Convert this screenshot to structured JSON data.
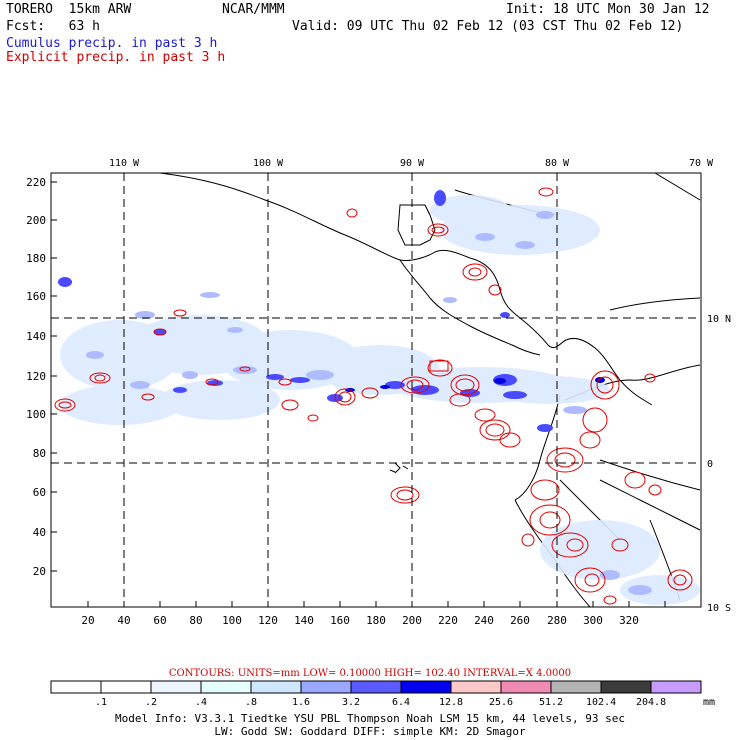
{
  "header": {
    "model_name": "TORERO  15km ARW",
    "center": "NCAR/MMM",
    "init": "Init: 18 UTC Mon 30 Jan 12",
    "fcst": "Fcst:   63 h",
    "valid": "Valid: 09 UTC Thu 02 Feb 12 (03 CST Thu 02 Feb 12)",
    "cumulus_label": "Cumulus precip. in past 3 h",
    "explicit_label": "Explicit precip. in past 3 h"
  },
  "map": {
    "lon_labels": [
      "110 W",
      "100 W",
      "90 W",
      "80 W",
      "70 W"
    ],
    "lat_labels": [
      "10 N",
      "0",
      "10 S"
    ],
    "x_ticks": [
      "20",
      "40",
      "60",
      "80",
      "100",
      "120",
      "140",
      "160",
      "180",
      "200",
      "220",
      "240",
      "260",
      "280",
      "300",
      "320"
    ],
    "y_ticks": [
      "220",
      "200",
      "180",
      "160",
      "140",
      "120",
      "100",
      "80",
      "60",
      "40",
      "20"
    ]
  },
  "legend": {
    "contours_text": "CONTOURS:  UNITS=mm  LOW= 0.10000      HIGH=  102.40      INTERVAL=X  4.0000",
    "levels": [
      ".1",
      ".2",
      ".4",
      ".8",
      "1.6",
      "3.2",
      "6.4",
      "12.8",
      "25.6",
      "51.2",
      "102.4",
      "204.8"
    ],
    "unit": "mm",
    "colors": [
      "#ffffff",
      "#ffffff",
      "#eef5ff",
      "#e6ffff",
      "#cfe6ff",
      "#9aa9ff",
      "#5a5aff",
      "#0000ee",
      "#ffc8c8",
      "#f08cb4",
      "#b4b4b4",
      "#3c3c3c",
      "#c89bff"
    ]
  },
  "footer": {
    "line1": "Model Info: V3.3.1    Tiedtke YSU PBL  Thompson    Noah LSM  15 km,   44 levels,   93 sec",
    "line2": "LW: Godd SW: Goddard DIFF: simple KM: 2D Smagor"
  }
}
